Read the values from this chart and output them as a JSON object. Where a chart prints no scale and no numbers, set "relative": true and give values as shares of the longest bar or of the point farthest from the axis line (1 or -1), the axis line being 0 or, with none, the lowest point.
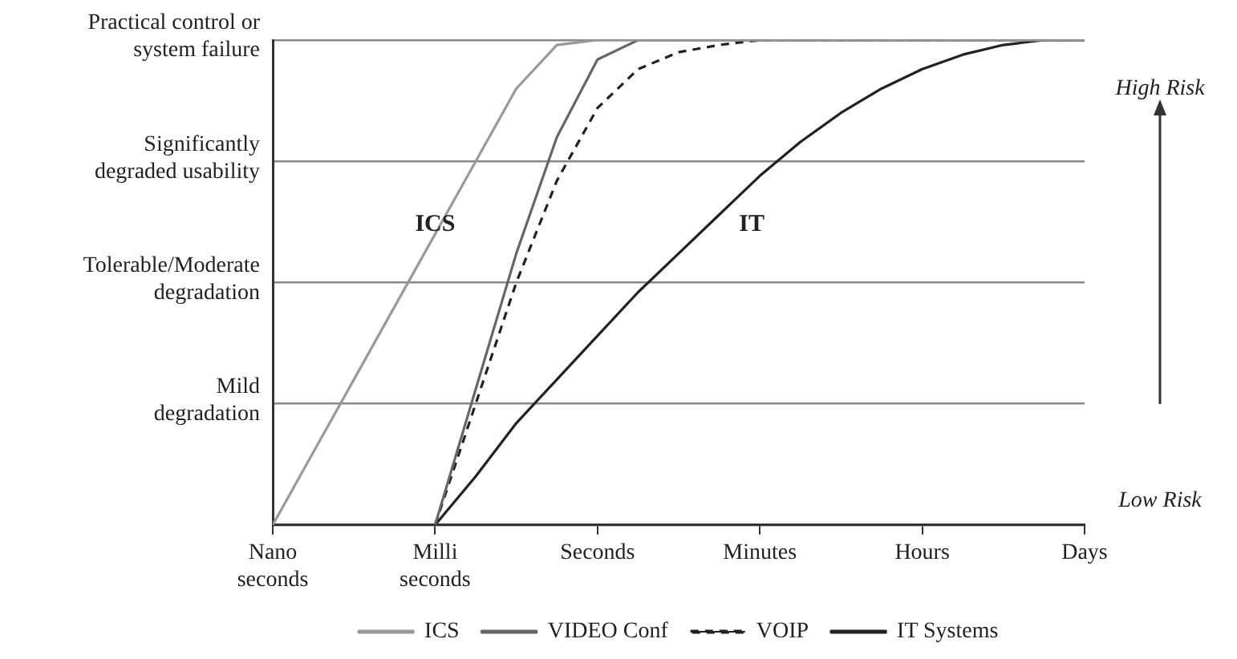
{
  "chart_data": {
    "type": "line",
    "relative": true,
    "categories": [
      "Nano\nseconds",
      null,
      null,
      null,
      "Milli\nseconds",
      null,
      null,
      null,
      "Seconds",
      null,
      null,
      null,
      "Minutes",
      null,
      null,
      null,
      "Hours",
      null,
      null,
      null,
      "Days"
    ],
    "grid": "y",
    "legend": "bottom",
    "marker": "none",
    "series": [
      {
        "name": "ICS",
        "color": "#999999",
        "line_style": "solid",
        "values": [
          0,
          0.15,
          0.3,
          0.45,
          0.6,
          0.75,
          0.9,
          0.99,
          1,
          1,
          1,
          1,
          1,
          1,
          1,
          1,
          1,
          1,
          1,
          1,
          1
        ]
      },
      {
        "name": "VIDEO Conf",
        "color": "#666666",
        "line_style": "solid",
        "values": [
          null,
          null,
          null,
          null,
          0,
          0.28,
          0.56,
          0.8,
          0.96,
          1,
          1,
          1,
          1,
          1,
          1,
          1,
          1,
          1,
          1,
          1,
          1
        ]
      },
      {
        "name": "VOIP",
        "color": "#222222",
        "line_style": "dashed",
        "values": [
          null,
          null,
          null,
          null,
          0,
          0.25,
          0.5,
          0.71,
          0.86,
          0.94,
          0.975,
          0.99,
          1,
          1,
          1,
          1,
          1,
          1,
          1,
          1,
          1
        ]
      },
      {
        "name": "IT Systems",
        "color": "#222222",
        "line_style": "solid",
        "values": [
          null,
          null,
          null,
          null,
          0,
          0.1,
          0.21,
          0.3,
          0.39,
          0.48,
          0.56,
          0.64,
          0.72,
          0.79,
          0.85,
          0.9,
          0.94,
          0.97,
          0.99,
          1,
          1
        ]
      }
    ],
    "annotations": [
      "Practical control or\nsystem failure",
      "Significantly\ndegraded usability",
      "Tolerable/Moderate\ndegradation",
      "Mild\ndegradation",
      "ICS",
      "IT",
      "High Risk",
      "Low Risk"
    ]
  }
}
